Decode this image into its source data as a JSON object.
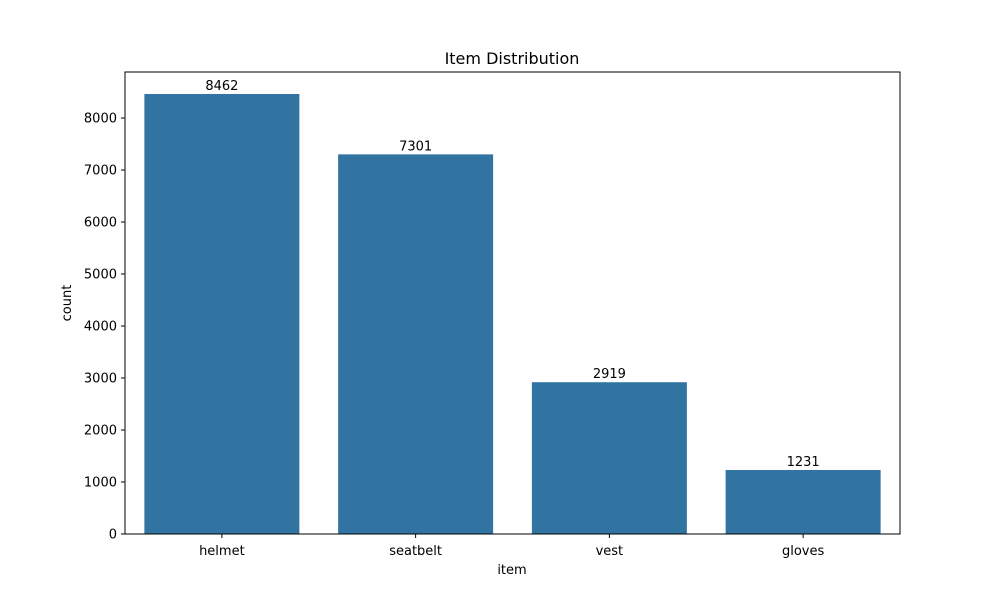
{
  "chart_data": {
    "type": "bar",
    "title": "Item Distribution",
    "xlabel": "item",
    "ylabel": "count",
    "categories": [
      "helmet",
      "seatbelt",
      "vest",
      "gloves"
    ],
    "values": [
      8462,
      7301,
      2919,
      1231
    ],
    "data_labels": [
      "8462",
      "7301",
      "2919",
      "1231"
    ],
    "ylim": [
      0,
      8885
    ],
    "yticks": [
      0,
      1000,
      2000,
      3000,
      4000,
      5000,
      6000,
      7000,
      8000
    ],
    "grid": false,
    "legend": "none",
    "bar_color": "#3274a1"
  }
}
